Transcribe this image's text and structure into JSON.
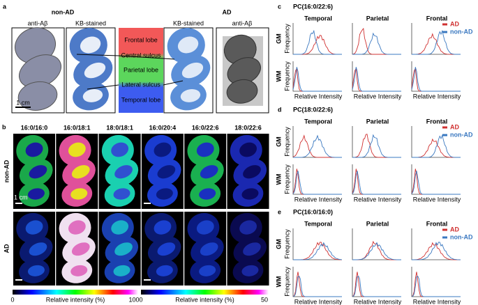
{
  "panel_a": {
    "label": "a",
    "left_title": "non-AD",
    "right_title": "AD",
    "image_labels": [
      "anti-Aβ",
      "KB-stained",
      "KB-stained",
      "anti-Aβ"
    ],
    "lobes": [
      "Frontal lobe",
      "Central sulcus",
      "Parietal lobe",
      "Lateral sulcus",
      "Temporal lobe"
    ],
    "scale": "1 cm"
  },
  "panel_b": {
    "label": "b",
    "columns": [
      "16:0/16:0",
      "16:0/18:1",
      "18:0/18:1",
      "16:0/20:4",
      "16:0/22:6",
      "18:0/22:6"
    ],
    "rows": [
      "non-AD",
      "AD"
    ],
    "scale": "1 cm",
    "colorbars": [
      {
        "min": "0",
        "label": "Relative intensity (%)",
        "max": "100"
      },
      {
        "min": "0",
        "label": "Relative intensity (%)",
        "max": "50"
      }
    ]
  },
  "histogram_panels": [
    {
      "label": "c",
      "title": "PC(16:0/22:6)",
      "regions": [
        "Temporal",
        "Parietal",
        "Frontal"
      ],
      "rows": [
        "GM",
        "WM"
      ],
      "ylabel": "Frequency",
      "xlabel": "Relative Intensity",
      "legend": [
        "AD",
        "non-AD"
      ]
    },
    {
      "label": "d",
      "title": "PC(18:0/22:6)",
      "regions": [
        "Temporal",
        "Parietal",
        "Frontal"
      ],
      "rows": [
        "GM",
        "WM"
      ],
      "ylabel": "Frequency",
      "xlabel": "Relative Intensity",
      "legend": [
        "AD",
        "non-AD"
      ]
    },
    {
      "label": "e",
      "title": "PC(16:0/16:0)",
      "regions": [
        "Temporal",
        "Parietal",
        "Frontal"
      ],
      "rows": [
        "GM",
        "WM"
      ],
      "ylabel": "Frequency",
      "xlabel": "Relative Intensity",
      "legend": [
        "AD",
        "non-AD"
      ]
    }
  ]
}
